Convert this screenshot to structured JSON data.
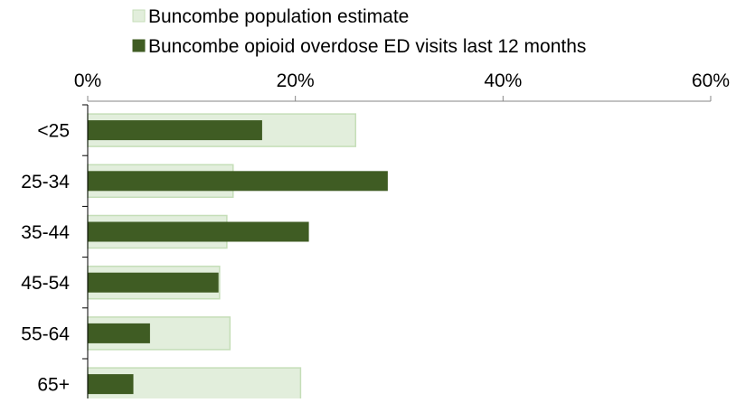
{
  "chart_data": {
    "type": "bar",
    "orientation": "horizontal",
    "categories": [
      "<25",
      "25-34",
      "35-44",
      "45-54",
      "55-64",
      "65+"
    ],
    "series": [
      {
        "name": "Buncombe population estimate",
        "values": [
          25.8,
          14.0,
          13.4,
          12.7,
          13.7,
          20.5
        ],
        "color": "#e2eedc",
        "stroke": "#c5deb8"
      },
      {
        "name": "Buncombe opioid overdose ED visits last 12 months",
        "values": [
          16.8,
          28.9,
          21.3,
          12.6,
          6.0,
          4.4
        ],
        "color": "#3f5c23"
      }
    ],
    "xlim": [
      0,
      60
    ],
    "xticks": [
      "0%",
      "20%",
      "40%",
      "60%"
    ],
    "xtick_values": [
      0,
      20,
      40,
      60
    ],
    "axis_position": "top",
    "legend_position": "top",
    "grid": false
  }
}
